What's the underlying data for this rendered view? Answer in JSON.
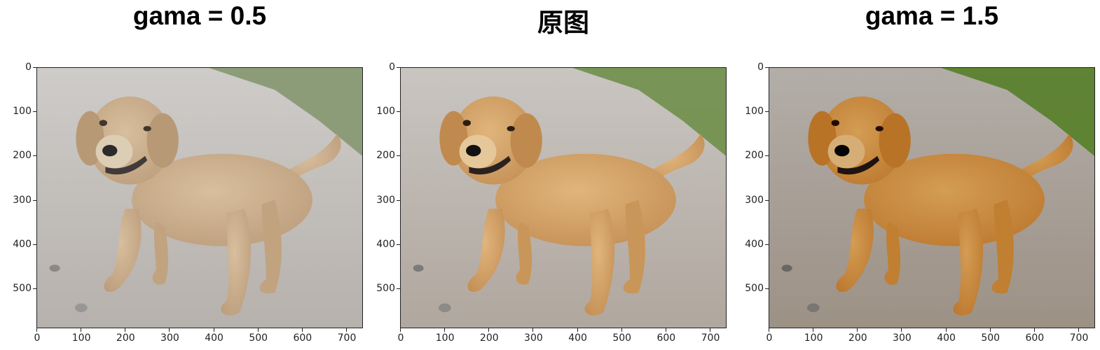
{
  "chart_data": [
    {
      "type": "heatmap",
      "title": "gama = 0.5",
      "gamma": 0.5,
      "image_size": [
        738,
        590
      ],
      "x_ticks": [
        0,
        100,
        200,
        300,
        400,
        500,
        600,
        700
      ],
      "y_ticks": [
        0,
        100,
        200,
        300,
        400,
        500
      ],
      "xlim": [
        0,
        738
      ],
      "ylim": [
        590,
        0
      ]
    },
    {
      "type": "heatmap",
      "title": "原图",
      "gamma": 1.0,
      "image_size": [
        738,
        590
      ],
      "x_ticks": [
        0,
        100,
        200,
        300,
        400,
        500,
        600,
        700
      ],
      "y_ticks": [
        0,
        100,
        200,
        300,
        400,
        500
      ],
      "xlim": [
        0,
        738
      ],
      "ylim": [
        590,
        0
      ]
    },
    {
      "type": "heatmap",
      "title": "gama = 1.5",
      "gamma": 1.5,
      "image_size": [
        738,
        590
      ],
      "x_ticks": [
        0,
        100,
        200,
        300,
        400,
        500,
        600,
        700
      ],
      "y_ticks": [
        0,
        100,
        200,
        300,
        400,
        500
      ],
      "xlim": [
        0,
        738
      ],
      "ylim": [
        590,
        0
      ]
    }
  ],
  "colors": {
    "dog": "#d4a46a",
    "road": "#bdb6ae",
    "grass": "#6f8f4a"
  }
}
